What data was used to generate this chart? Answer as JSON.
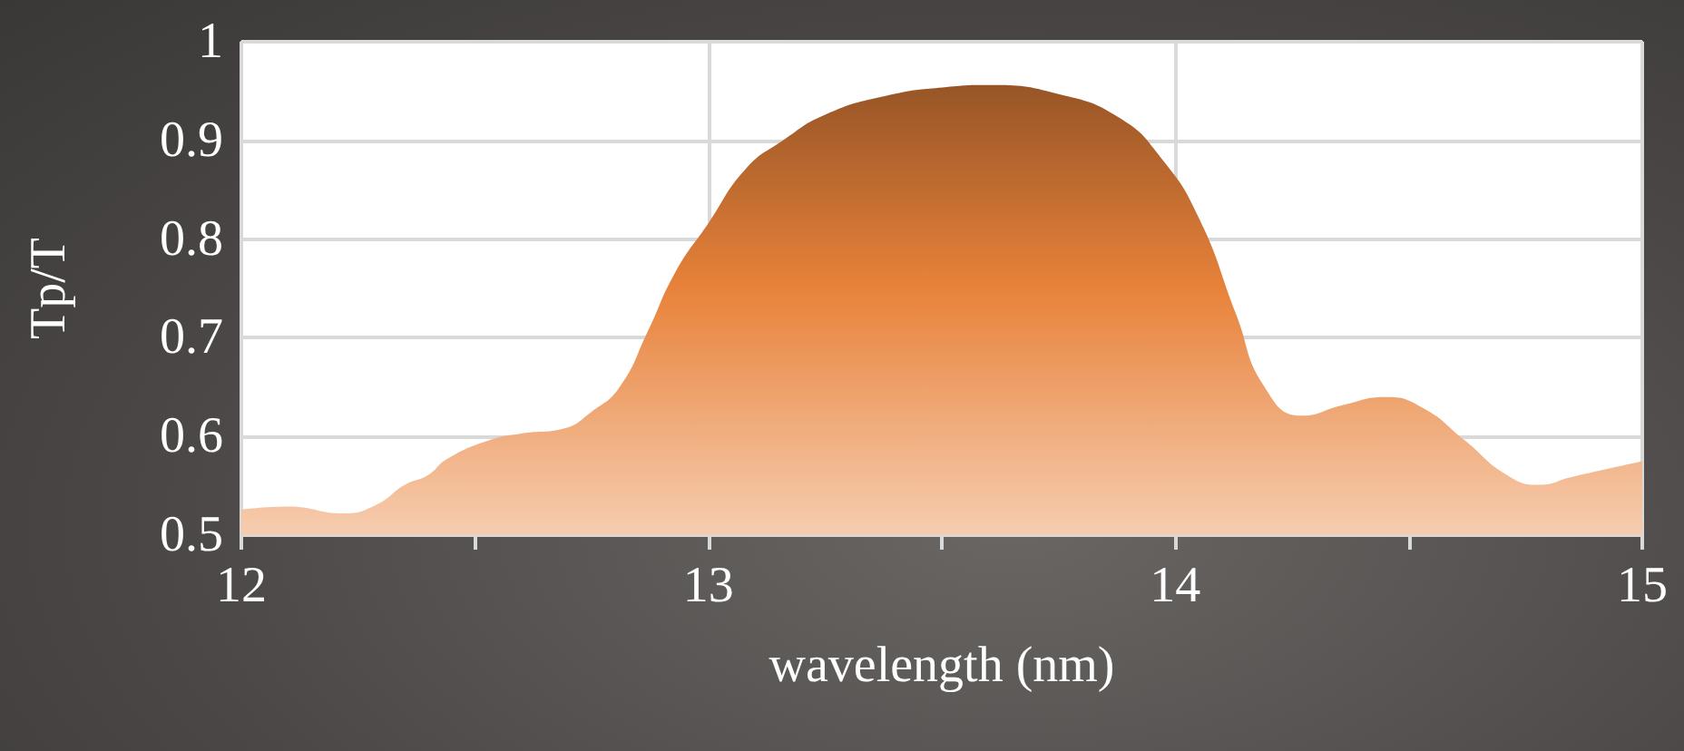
{
  "chart_data": {
    "type": "area",
    "xlabel": "wavelength (nm)",
    "ylabel": "Tp/T",
    "xlim": [
      12,
      15
    ],
    "xticks": [
      12,
      {
        "value": 12.5,
        "label": null
      },
      13,
      {
        "value": 13.5,
        "label": null
      },
      14,
      {
        "value": 14.5,
        "label": null
      },
      15
    ],
    "ylim": [
      0.5,
      1
    ],
    "yticks": [
      0.5,
      0.6,
      0.7,
      0.8,
      0.9,
      1
    ],
    "grid": true,
    "marker": "none",
    "series": [
      {
        "color": "#e8823a",
        "x": [
          12.0,
          12.1,
          12.22,
          12.29,
          12.35,
          12.4,
          12.44,
          12.53,
          12.6,
          12.69,
          12.75,
          12.81,
          12.87,
          12.93,
          13.0,
          13.08,
          13.16,
          13.25,
          13.38,
          13.51,
          13.6,
          13.75,
          13.88,
          13.97,
          14.05,
          14.13,
          14.19,
          14.27,
          14.36,
          14.45,
          14.53,
          14.62,
          14.71,
          14.78,
          14.85,
          15.0
        ],
        "values": [
          0.526,
          0.529,
          0.522,
          0.531,
          0.551,
          0.561,
          0.577,
          0.596,
          0.603,
          0.608,
          0.625,
          0.65,
          0.706,
          0.767,
          0.816,
          0.871,
          0.9,
          0.926,
          0.945,
          0.954,
          0.956,
          0.947,
          0.923,
          0.882,
          0.822,
          0.724,
          0.651,
          0.621,
          0.632,
          0.64,
          0.629,
          0.596,
          0.561,
          0.551,
          0.559,
          0.575
        ]
      }
    ]
  }
}
